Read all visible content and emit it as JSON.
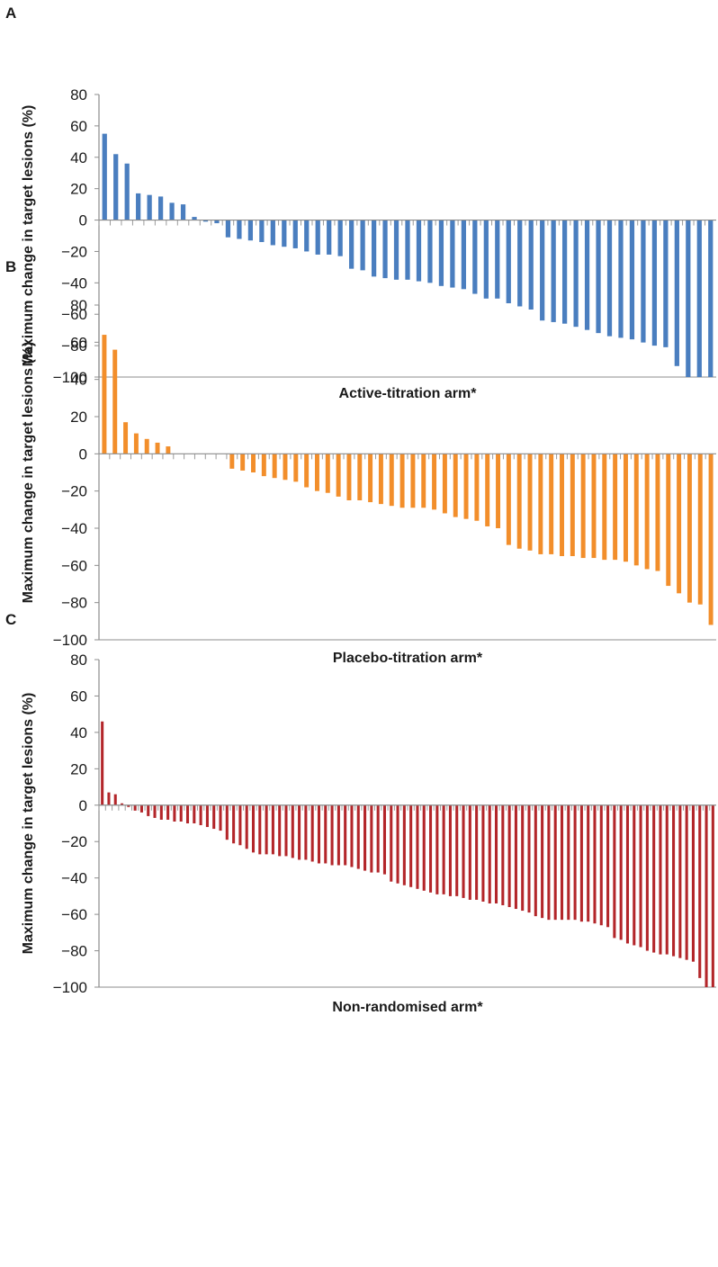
{
  "chart_data": [
    {
      "panel": "A",
      "type": "bar",
      "title": "",
      "xlabel": "Active-titration arm*",
      "ylabel": "Maximum change in target lesions (%)",
      "ylim": [
        -100,
        80
      ],
      "yticks": [
        80,
        60,
        40,
        20,
        0,
        -20,
        -40,
        -60,
        -80,
        -100
      ],
      "grid": false,
      "color": "#4a7ebf",
      "values": [
        55,
        42,
        36,
        17,
        16,
        15,
        11,
        10,
        2,
        -1,
        -2,
        -11,
        -12,
        -13,
        -14,
        -16,
        -17,
        -18,
        -20,
        -22,
        -22,
        -23,
        -31,
        -32,
        -36,
        -37,
        -38,
        -38,
        -39,
        -40,
        -42,
        -43,
        -44,
        -47,
        -50,
        -50,
        -53,
        -55,
        -57,
        -64,
        -65,
        -66,
        -68,
        -70,
        -72,
        -74,
        -75,
        -76,
        -78,
        -80,
        -81,
        -93,
        -100,
        -100,
        -100
      ]
    },
    {
      "panel": "B",
      "type": "bar",
      "title": "",
      "xlabel": "Placebo-titration arm*",
      "ylabel": "Maximum change in target lesions (%)",
      "ylim": [
        -100,
        80
      ],
      "yticks": [
        80,
        60,
        40,
        20,
        0,
        -20,
        -40,
        -60,
        -80,
        -100
      ],
      "grid": false,
      "color": "#f28e2b",
      "values": [
        64,
        56,
        17,
        11,
        8,
        6,
        4,
        0,
        0,
        0,
        0,
        0,
        -8,
        -9,
        -10,
        -12,
        -13,
        -14,
        -15,
        -18,
        -20,
        -21,
        -23,
        -25,
        -25,
        -26,
        -27,
        -28,
        -29,
        -29,
        -29,
        -30,
        -32,
        -34,
        -35,
        -36,
        -39,
        -40,
        -49,
        -51,
        -52,
        -54,
        -54,
        -55,
        -55,
        -56,
        -56,
        -57,
        -57,
        -58,
        -60,
        -62,
        -63,
        -71,
        -75,
        -80,
        -81,
        -92
      ]
    },
    {
      "panel": "C",
      "type": "bar",
      "title": "",
      "xlabel": "Non-randomised arm*",
      "ylabel": "Maximum change in target lesions (%)",
      "ylim": [
        -100,
        80
      ],
      "yticks": [
        80,
        60,
        40,
        20,
        0,
        -20,
        -40,
        -60,
        -80,
        -100
      ],
      "grid": false,
      "color": "#b3262a",
      "values": [
        46,
        7,
        6,
        1,
        -1,
        -3,
        -4,
        -6,
        -7,
        -8,
        -8,
        -9,
        -9,
        -10,
        -10,
        -11,
        -12,
        -13,
        -14,
        -19,
        -21,
        -22,
        -24,
        -26,
        -27,
        -27,
        -27,
        -28,
        -28,
        -29,
        -30,
        -30,
        -31,
        -32,
        -32,
        -33,
        -33,
        -33,
        -34,
        -35,
        -36,
        -37,
        -37,
        -38,
        -42,
        -43,
        -44,
        -45,
        -46,
        -47,
        -48,
        -49,
        -49,
        -50,
        -50,
        -51,
        -52,
        -52,
        -53,
        -54,
        -54,
        -55,
        -56,
        -57,
        -58,
        -59,
        -61,
        -62,
        -63,
        -63,
        -63,
        -63,
        -63,
        -64,
        -64,
        -65,
        -66,
        -67,
        -73,
        -74,
        -76,
        -77,
        -78,
        -80,
        -81,
        -82,
        -82,
        -83,
        -84,
        -85,
        -86,
        -95,
        -100,
        -100
      ]
    }
  ]
}
